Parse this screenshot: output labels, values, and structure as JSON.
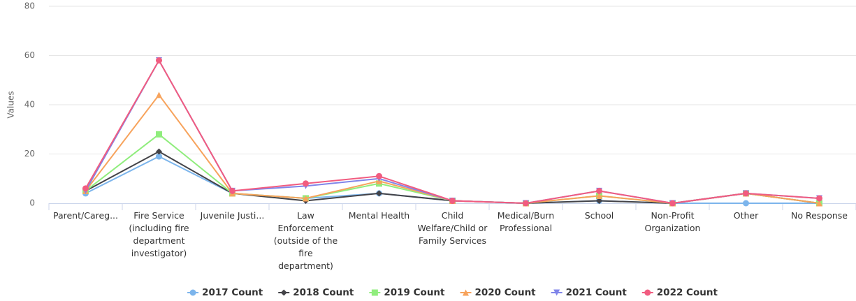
{
  "chart_data": {
    "type": "line",
    "y_label": "Values",
    "categories": [
      "Parent/Careg...",
      "Fire Service (including fire department investigator)",
      "Juvenile Justi...",
      "Law Enforcement (outside of the fire department)",
      "Mental Health",
      "Child Welfare/Child or Family Services",
      "Medical/Burn Professional",
      "School",
      "Non-Profit Organization",
      "Other",
      "No Response"
    ],
    "series": [
      {
        "name": "2017 Count",
        "color": "#7cb5ec",
        "marker": "circle",
        "values": [
          4,
          19,
          4,
          2,
          4,
          1,
          0,
          1,
          0,
          0,
          0
        ]
      },
      {
        "name": "2018 Count",
        "color": "#434348",
        "marker": "diamond",
        "values": [
          5,
          21,
          4,
          1,
          4,
          1,
          0,
          1,
          0,
          4,
          0
        ]
      },
      {
        "name": "2019 Count",
        "color": "#90ed7d",
        "marker": "square",
        "values": [
          5,
          28,
          4,
          2,
          8,
          1,
          0,
          3,
          0,
          4,
          0
        ]
      },
      {
        "name": "2020 Count",
        "color": "#f7a35c",
        "marker": "triangle",
        "values": [
          5,
          44,
          4,
          2,
          9,
          1,
          0,
          3,
          0,
          4,
          0
        ]
      },
      {
        "name": "2021 Count",
        "color": "#8085e9",
        "marker": "triangle-down",
        "values": [
          5,
          58,
          5,
          7,
          10,
          1,
          0,
          5,
          0,
          4,
          2
        ]
      },
      {
        "name": "2022 Count",
        "color": "#f15c80",
        "marker": "circle",
        "values": [
          6,
          58,
          5,
          8,
          11,
          1,
          0,
          5,
          0,
          4,
          2
        ]
      }
    ],
    "ylim": [
      0,
      80
    ],
    "yticks": [
      0,
      20,
      40,
      60,
      80
    ],
    "grid": true,
    "legend": "bottom"
  }
}
